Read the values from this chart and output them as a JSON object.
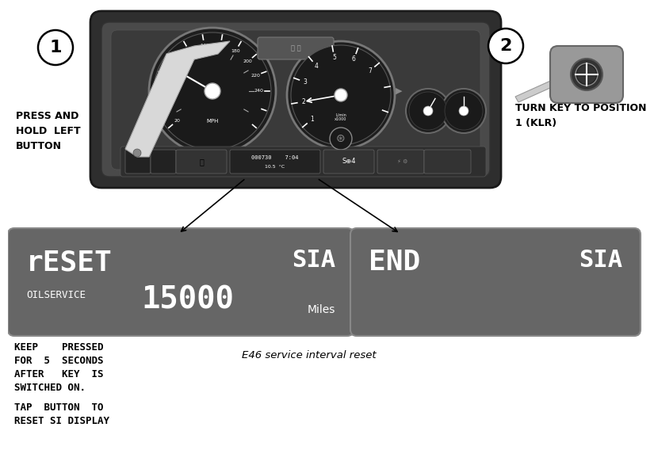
{
  "background_color": "#ffffff",
  "circle1_label": "1",
  "circle2_label": "2",
  "press_hold_text": "PRESS AND\nHOLD  LEFT\nBUTTON",
  "turn_key_text": "TURN KEY TO POSITION\n1 (KLR)",
  "display1_color": "#666666",
  "display1_line1": "rESET",
  "display1_sia": "SIA",
  "display1_line2": "OILSERVICE",
  "display1_line3": "15000",
  "display1_miles": "Miles",
  "display2_color": "#666666",
  "display2_line1": "END",
  "display2_sia": "SIA",
  "bottom_text1_line1": "KEEP    PRESSED",
  "bottom_text1_line2": "FOR  5  SECONDS",
  "bottom_text1_line3": "AFTER   KEY  IS",
  "bottom_text1_line4": "SWITCHED ON.",
  "bottom_text1_line5": "TAP  BUTTON  TO",
  "bottom_text1_line6": "RESET SI DISPLAY",
  "bottom_text2": "E46 service interval reset",
  "cluster_color_outer": "#3a3a3a",
  "cluster_color_mid": "#555555",
  "cluster_color_inner": "#444444",
  "gauge_dark": "#222222",
  "gauge_ring": "#888888",
  "white": "#ffffff",
  "text_white": "#ffffff",
  "text_light": "#cccccc"
}
